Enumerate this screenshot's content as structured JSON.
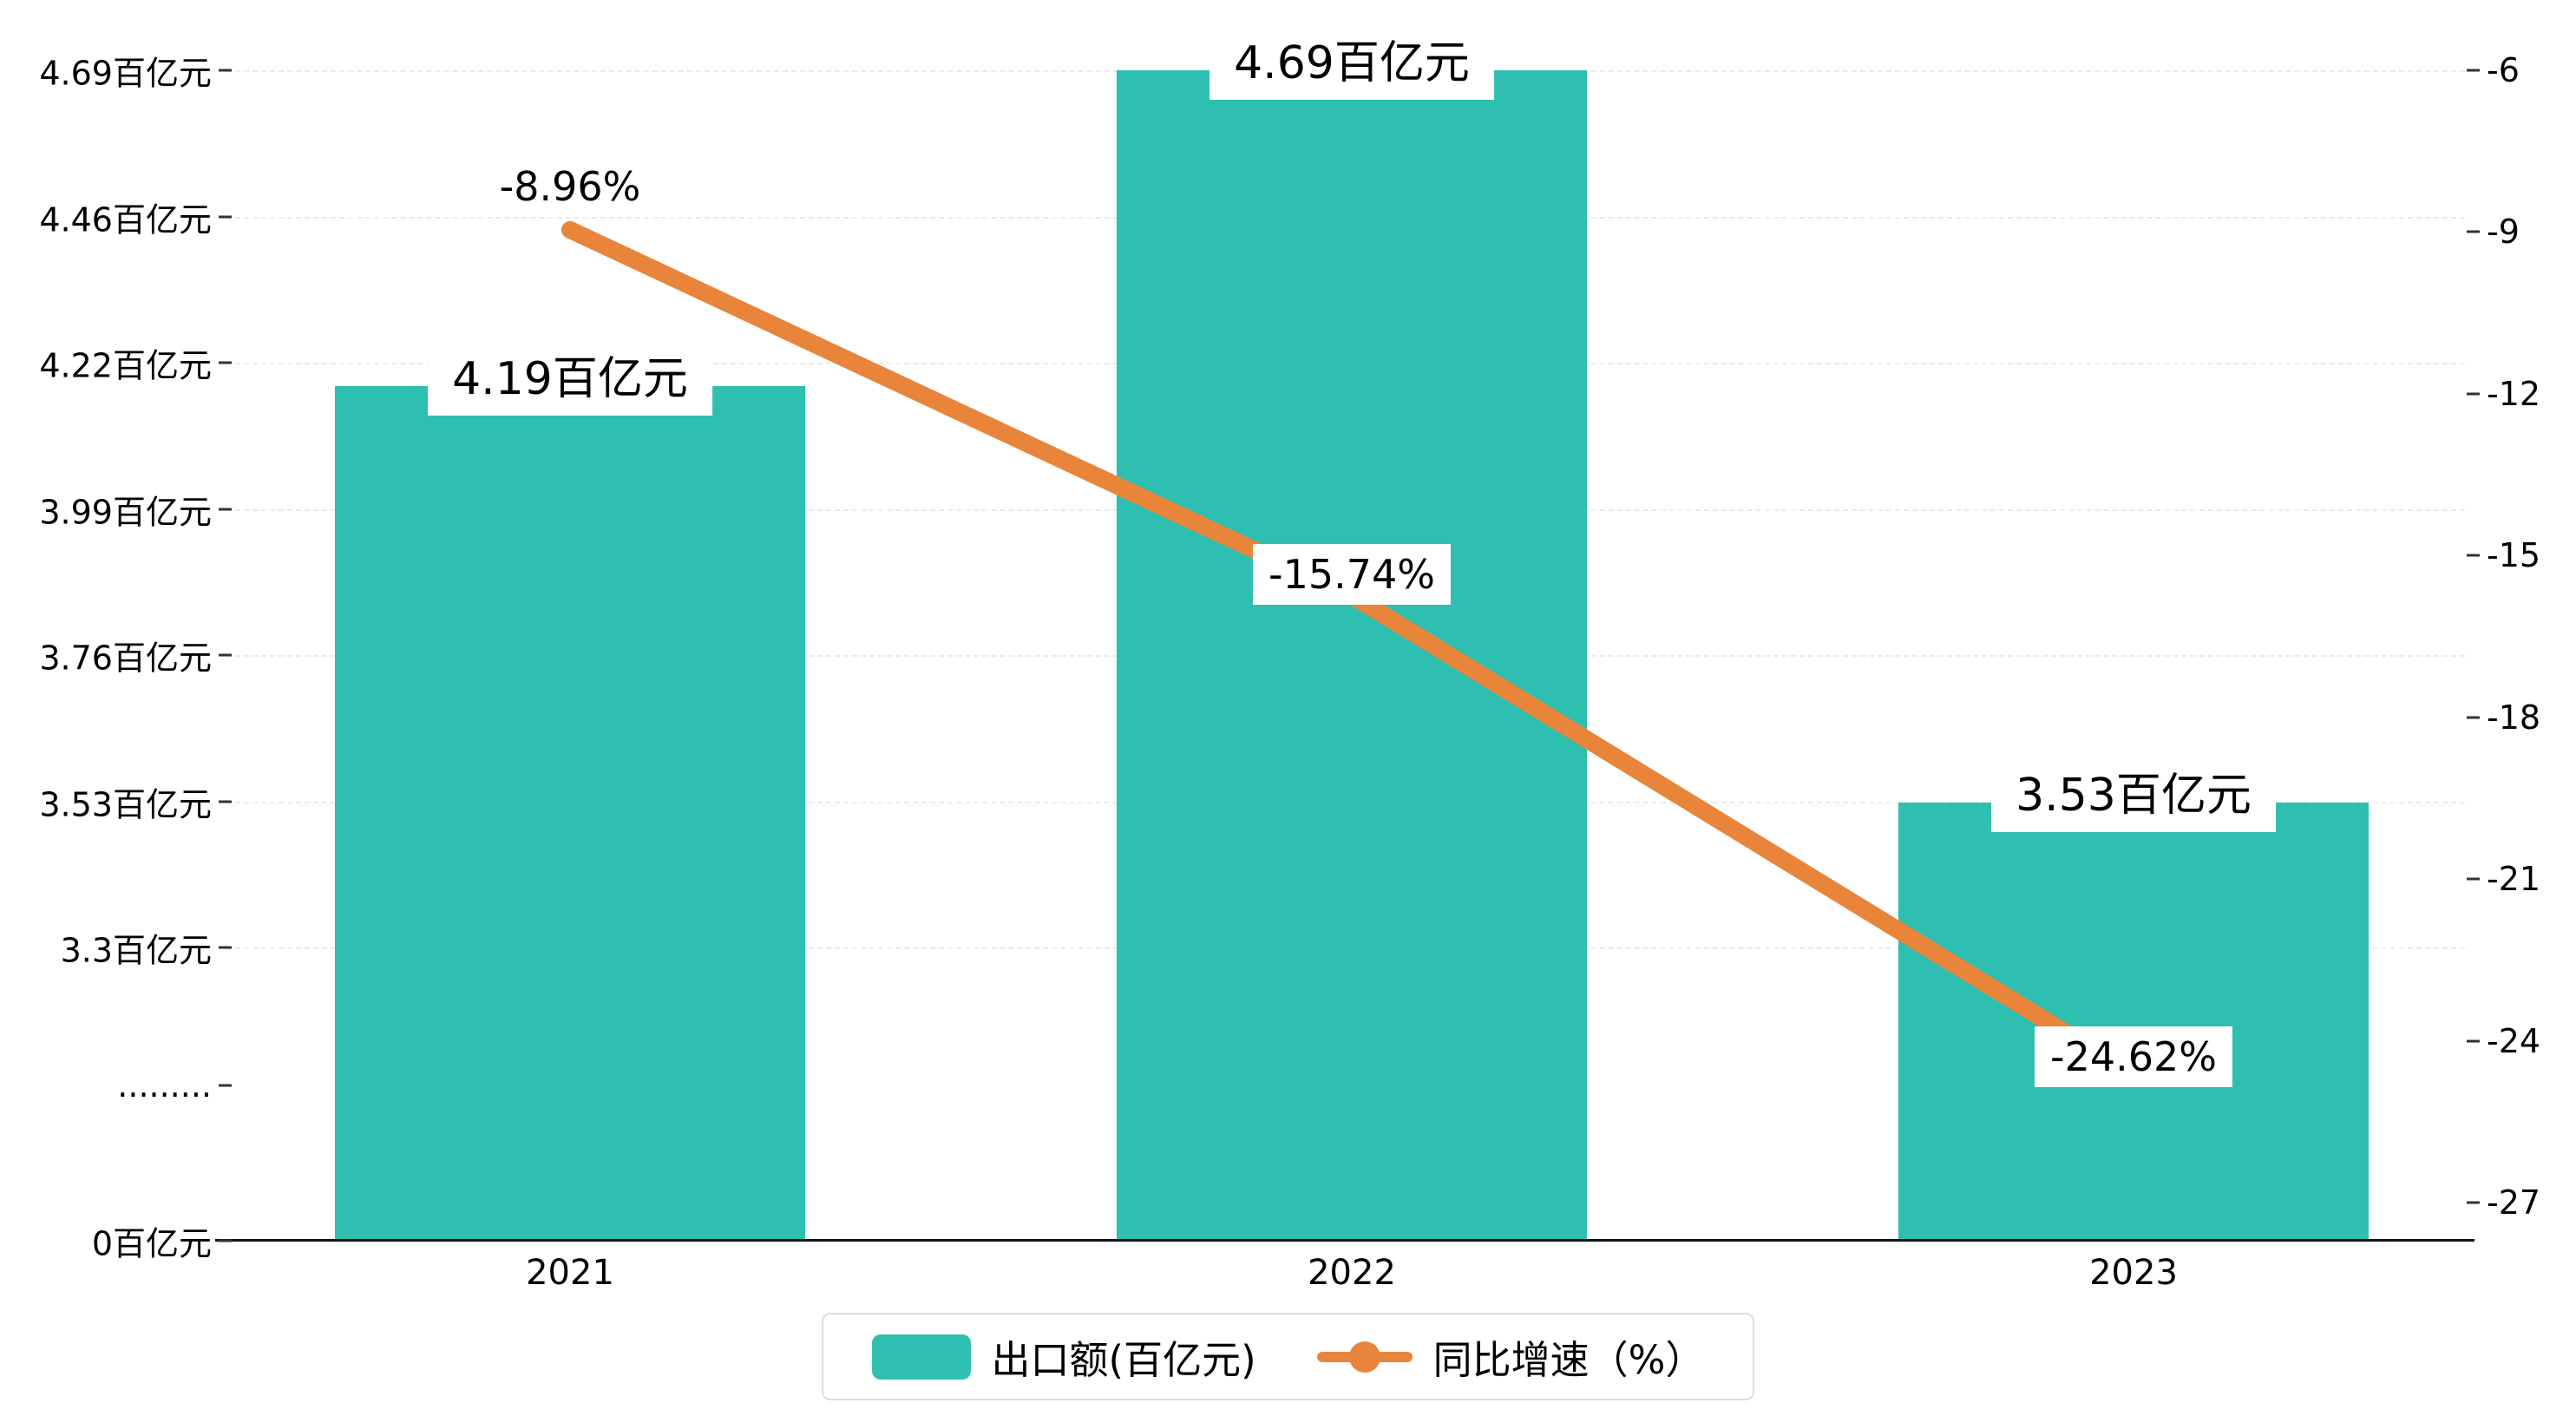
{
  "chart_data": {
    "type": "bar",
    "categories": [
      "2021",
      "2022",
      "2023"
    ],
    "series": [
      {
        "name": "出口额(百亿元)",
        "type": "bar",
        "values": [
          4.19,
          4.69,
          3.53
        ],
        "data_labels": [
          "4.19百亿元",
          "4.69百亿元",
          "3.53百亿元"
        ],
        "color": "#2ebfb0"
      },
      {
        "name": "同比增速（%）",
        "type": "line",
        "values": [
          -8.96,
          -15.74,
          -24.62
        ],
        "data_labels": [
          "-8.96%",
          "-15.74%",
          "-24.62%"
        ],
        "color": "#e8853b"
      }
    ],
    "left_axis": {
      "tick_labels": [
        "4.69百亿元",
        "4.46百亿元",
        "4.22百亿元",
        "3.99百亿元",
        "3.76百亿元",
        "3.53百亿元",
        "3.3百亿元",
        ".........",
        "0百亿元"
      ],
      "value_range_top": [
        3.3,
        4.69
      ],
      "break_after_index": 6,
      "zero_label": "0百亿元"
    },
    "right_axis": {
      "tick_labels": [
        "-6",
        "-9",
        "-12",
        "-15",
        "-18",
        "-21",
        "-24",
        "-27"
      ],
      "range": [
        -27,
        -6
      ]
    },
    "grid": true,
    "legend_position": "bottom"
  },
  "legend": {
    "bar_label": "出口额(百亿元)",
    "line_label": "同比增速（%）"
  }
}
